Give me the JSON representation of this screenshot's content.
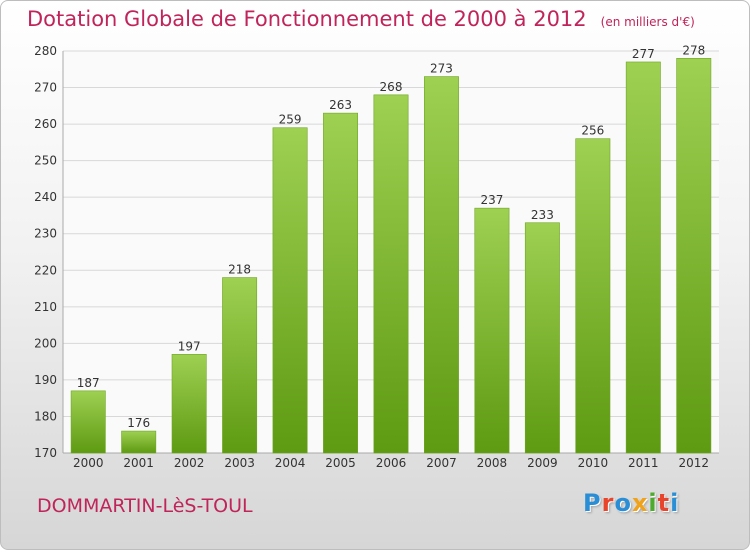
{
  "header": {
    "title": "Dotation Globale de Fonctionnement de 2000 à 2012",
    "unit_note": "(en milliers d'€)"
  },
  "footer": {
    "commune": "DOMMARTIN-LèS-TOUL",
    "brand": "Proxiti",
    "brand_colors": [
      "#2a8ed6",
      "#e8432b",
      "#2a8ed6",
      "#f0a21a",
      "#4caa2d",
      "#e8432b",
      "#2a8ed6"
    ]
  },
  "colors": {
    "accent": "#c0245a",
    "bar_light": "#9ed052",
    "bar_dark": "#5e9a12",
    "grid": "#d8d8d8",
    "axis_text": "#333333"
  },
  "chart_data": {
    "type": "bar",
    "categories": [
      "2000",
      "2001",
      "2002",
      "2003",
      "2004",
      "2005",
      "2006",
      "2007",
      "2008",
      "2009",
      "2010",
      "2011",
      "2012"
    ],
    "values": [
      187,
      176,
      197,
      218,
      259,
      263,
      268,
      273,
      237,
      233,
      256,
      277,
      278
    ],
    "ylim": [
      170,
      280
    ],
    "yticks": [
      170,
      180,
      190,
      200,
      210,
      220,
      230,
      240,
      250,
      260,
      270,
      280
    ],
    "grid": true,
    "data_labels": true
  }
}
